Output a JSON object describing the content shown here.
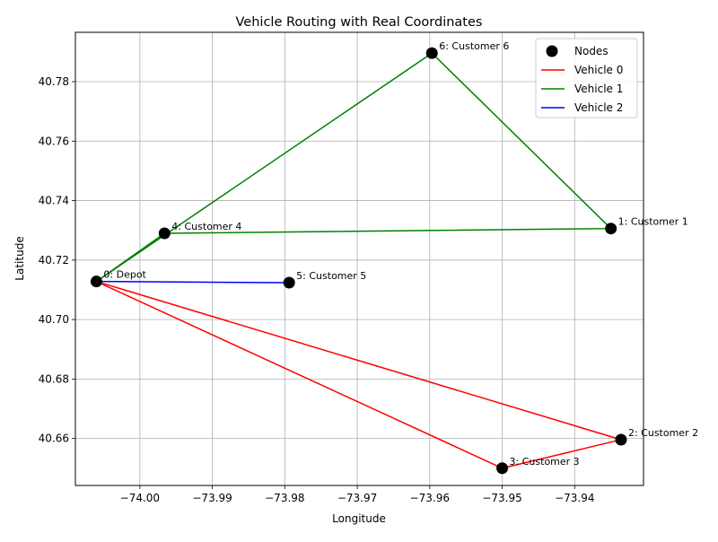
{
  "chart_data": {
    "type": "line",
    "title": "Vehicle Routing with Real Coordinates",
    "xlabel": "Longitude",
    "ylabel": "Latitude",
    "xlim": [
      -74.0089,
      -73.9305
    ],
    "ylim": [
      40.6442,
      40.7966
    ],
    "xticks": [
      -74.0,
      -73.99,
      -73.98,
      -73.97,
      -73.96,
      -73.95,
      -73.94
    ],
    "xtick_labels": [
      "−74.00",
      "−73.99",
      "−73.98",
      "−73.97",
      "−73.96",
      "−73.95",
      "−73.94"
    ],
    "yticks": [
      40.66,
      40.68,
      40.7,
      40.72,
      40.74,
      40.76,
      40.78
    ],
    "ytick_labels": [
      "40.66",
      "40.68",
      "40.70",
      "40.72",
      "40.74",
      "40.76",
      "40.78"
    ],
    "grid": true,
    "legend_position": "top-right",
    "nodes": {
      "name": "Nodes",
      "color": "#000000",
      "points": [
        {
          "id": 0,
          "label": "0: Depot",
          "lon": -74.006,
          "lat": 40.7128
        },
        {
          "id": 1,
          "label": "1: Customer 1",
          "lon": -73.935,
          "lat": 40.7306
        },
        {
          "id": 2,
          "label": "2: Customer 2",
          "lon": -73.9336,
          "lat": 40.6596
        },
        {
          "id": 3,
          "label": "3: Customer 3",
          "lon": -73.95,
          "lat": 40.65
        },
        {
          "id": 4,
          "label": "4: Customer 4",
          "lon": -73.9966,
          "lat": 40.729
        },
        {
          "id": 5,
          "label": "5: Customer 5",
          "lon": -73.9794,
          "lat": 40.7124
        },
        {
          "id": 6,
          "label": "6: Customer 6",
          "lon": -73.9597,
          "lat": 40.7896
        }
      ]
    },
    "series": [
      {
        "name": "Vehicle 0",
        "color": "#ff0000",
        "route": [
          0,
          3,
          2,
          0
        ]
      },
      {
        "name": "Vehicle 1",
        "color": "#008000",
        "route": [
          0,
          6,
          1,
          4,
          0
        ]
      },
      {
        "name": "Vehicle 2",
        "color": "#0000ff",
        "route": [
          0,
          5,
          0
        ]
      }
    ]
  }
}
